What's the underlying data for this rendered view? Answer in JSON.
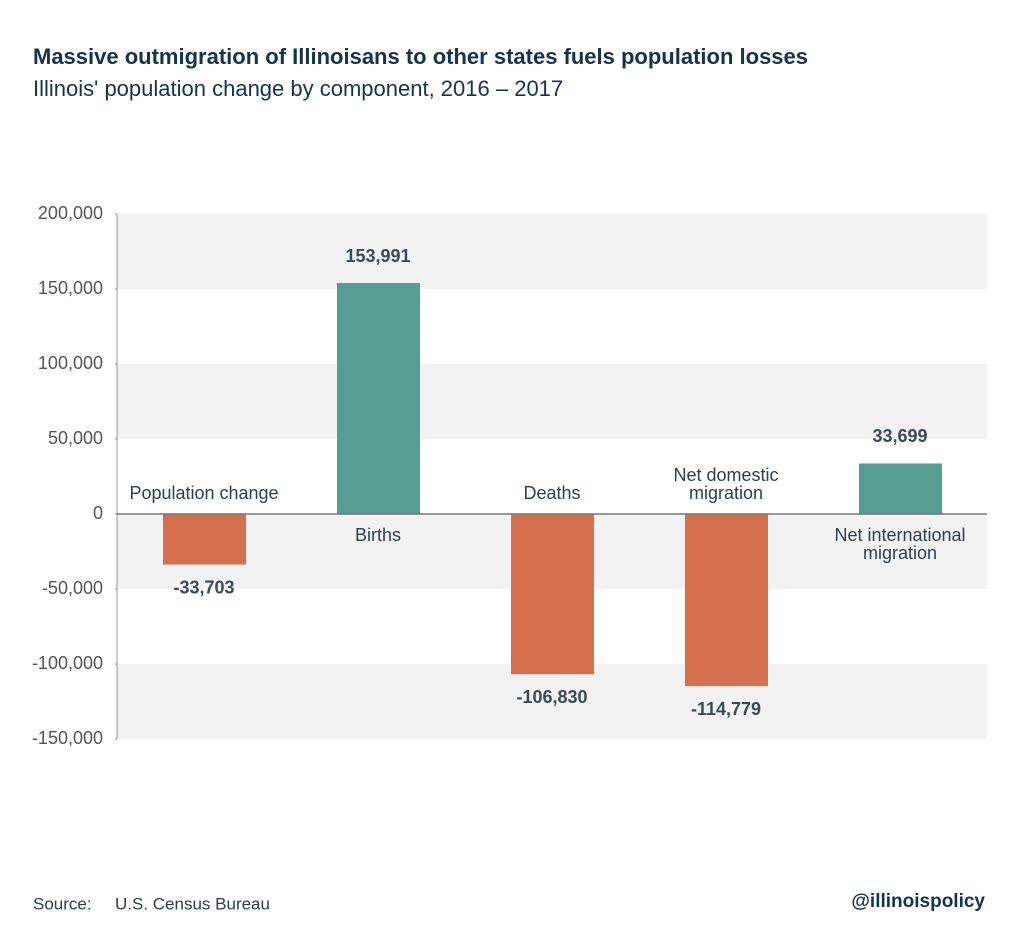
{
  "title": "Massive outmigration of Illinoisans to other states fuels population losses",
  "subtitle": "Illinois' population change by component, 2016 – 2017",
  "chart_data": {
    "type": "bar",
    "categories": [
      "Population change",
      "Births",
      "Deaths",
      "Net domestic migration",
      "Net international migration"
    ],
    "values": [
      -33703,
      153991,
      -106830,
      -114779,
      33699
    ],
    "value_labels": [
      "-33,703",
      "153,991",
      "-106,830",
      "-114,779",
      "33,699"
    ],
    "colors": {
      "positive": "#579d91",
      "negative": "#d4704d"
    },
    "ylim": [
      -150000,
      200000
    ],
    "yticks": [
      {
        "value": -150000,
        "label": "-150,000"
      },
      {
        "value": -100000,
        "label": "-100,000"
      },
      {
        "value": -50000,
        "label": "-50,000"
      },
      0,
      {
        "value": 50000,
        "label": "50,000"
      },
      {
        "value": 100000,
        "label": "100,000"
      },
      {
        "value": 150000,
        "label": "150,000"
      },
      {
        "value": 200000,
        "label": "200,000"
      }
    ],
    "banded_grid": true
  },
  "footer": {
    "source_label": "Source:",
    "source": "U.S. Census Bureau",
    "handle": "@illinoispolicy"
  }
}
